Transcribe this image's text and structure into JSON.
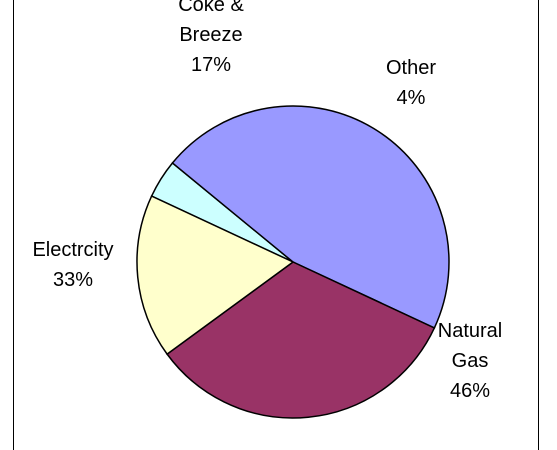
{
  "chart_data": {
    "type": "pie",
    "title": "",
    "start_angle_deg": 155,
    "direction": "clockwise",
    "slices": [
      {
        "name": "Other",
        "value": 4,
        "label_lines": [
          "Other",
          "4%"
        ],
        "color": "#ccffff"
      },
      {
        "name": "Natural Gas",
        "value": 46,
        "label_lines": [
          "Natural",
          "Gas",
          "46%"
        ],
        "color": "#9999ff"
      },
      {
        "name": "Electrcity",
        "value": 33,
        "label_lines": [
          "Electrcity",
          "33%"
        ],
        "color": "#993366"
      },
      {
        "name": "Coke & Breeze",
        "value": 17,
        "label_lines": [
          "Coke &",
          "Breeze",
          "17%"
        ],
        "color": "#ffffcc"
      }
    ]
  }
}
